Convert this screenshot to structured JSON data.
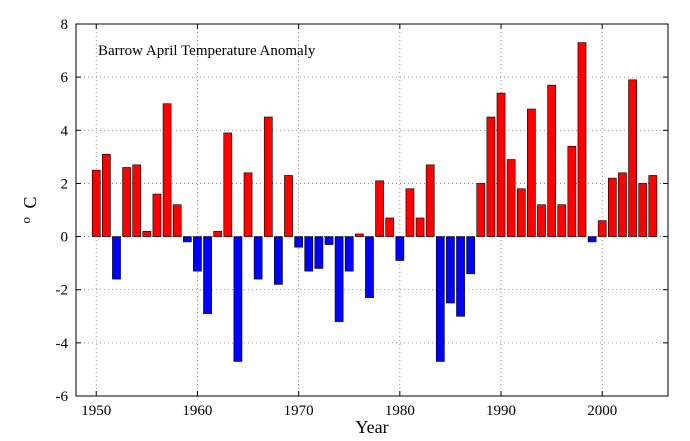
{
  "chart_data": {
    "type": "bar",
    "title": "Barrow April Temperature Anomaly",
    "xlabel": "Year",
    "ylabel_main": "C",
    "ylabel_superscript": "o",
    "xlim": [
      1948,
      2006.5
    ],
    "ylim": [
      -6,
      8
    ],
    "xticks": [
      1950,
      1960,
      1970,
      1980,
      1990,
      2000
    ],
    "yticks": [
      -6,
      -4,
      -2,
      0,
      2,
      4,
      6,
      8
    ],
    "grid": true,
    "positive_color": "#ff0000",
    "negative_color": "#0000ff",
    "series": [
      {
        "x": [
          1950,
          1951,
          1952,
          1953,
          1954,
          1955,
          1956,
          1957,
          1958,
          1959,
          1960,
          1961,
          1962,
          1963,
          1964,
          1965,
          1966,
          1967,
          1968,
          1969,
          1970,
          1971,
          1972,
          1973,
          1974,
          1975,
          1976,
          1977,
          1978,
          1979,
          1980,
          1981,
          1982,
          1983,
          1984,
          1985,
          1986,
          1987,
          1988,
          1989,
          1990,
          1991,
          1992,
          1993,
          1994,
          1995,
          1996,
          1997,
          1998,
          1999,
          2000,
          2001,
          2002,
          2003,
          2004,
          2005
        ],
        "values": [
          2.5,
          3.1,
          -1.6,
          2.6,
          2.7,
          0.2,
          1.6,
          5.0,
          1.2,
          -0.2,
          -1.3,
          -2.9,
          0.2,
          3.9,
          -4.7,
          2.4,
          -1.6,
          4.5,
          -1.8,
          2.3,
          -0.4,
          -1.3,
          -1.2,
          -0.3,
          -3.2,
          -1.3,
          0.1,
          -2.3,
          2.1,
          0.7,
          -0.9,
          1.8,
          0.7,
          2.7,
          -4.7,
          -2.5,
          -3.0,
          -1.4,
          2.0,
          4.5,
          5.4,
          2.9,
          1.8,
          4.8,
          1.2,
          5.7,
          1.2,
          3.4,
          7.3,
          -0.2,
          0.6,
          2.2,
          2.4,
          5.9,
          2.0,
          2.3
        ]
      }
    ]
  }
}
